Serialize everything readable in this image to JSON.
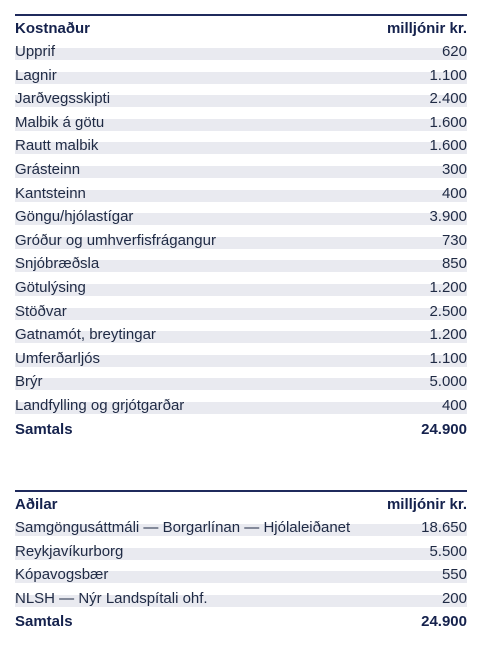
{
  "cost_table": {
    "header": {
      "label": "Kostnaður",
      "unit": "milljónir kr."
    },
    "rows": [
      {
        "label": "Upprif",
        "value": "620"
      },
      {
        "label": "Lagnir",
        "value": "1.100"
      },
      {
        "label": "Jarðvegsskipti",
        "value": "2.400"
      },
      {
        "label": "Malbik á götu",
        "value": "1.600"
      },
      {
        "label": "Rautt malbik",
        "value": "1.600"
      },
      {
        "label": "Grásteinn",
        "value": "300"
      },
      {
        "label": "Kantsteinn",
        "value": "400"
      },
      {
        "label": "Göngu/hjólastígar",
        "value": "3.900"
      },
      {
        "label": "Gróður og umhverfisfrágangur",
        "value": "730"
      },
      {
        "label": "Snjóbræðsla",
        "value": "850"
      },
      {
        "label": "Götulýsing",
        "value": "1.200"
      },
      {
        "label": "Stöðvar",
        "value": "2.500"
      },
      {
        "label": "Gatnamót, breytingar",
        "value": "1.200"
      },
      {
        "label": "Umferðarljós",
        "value": "1.100"
      },
      {
        "label": "Brýr",
        "value": "5.000"
      },
      {
        "label": "Landfylling og grjótgarðar",
        "value": "400"
      }
    ],
    "total": {
      "label": "Samtals",
      "value": "24.900"
    }
  },
  "party_table": {
    "header": {
      "label": "Aðilar",
      "unit": "milljónir kr."
    },
    "rows": [
      {
        "label": "Samgöngusáttmáli — Borgarlínan — Hjólaleiðanet",
        "value": "18.650"
      },
      {
        "label": "Reykjavíkurborg",
        "value": "5.500"
      },
      {
        "label": "Kópavogsbær",
        "value": "550"
      },
      {
        "label": "NLSH — Nýr Landspítali ohf.",
        "value": "200"
      }
    ],
    "total": {
      "label": "Samtals",
      "value": "24.900"
    }
  }
}
